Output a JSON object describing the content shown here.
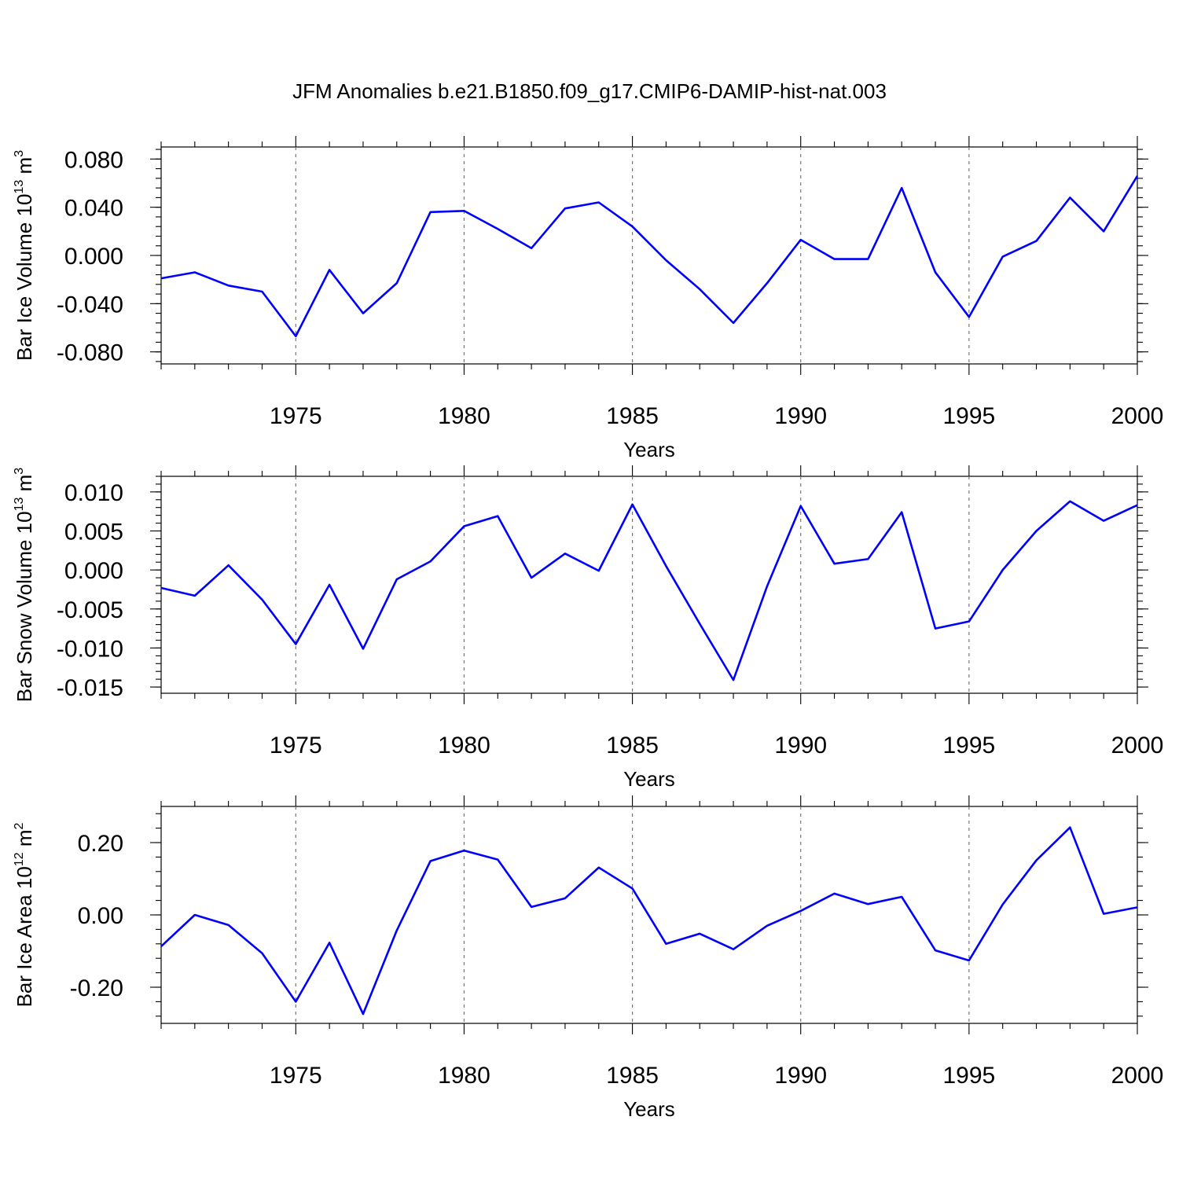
{
  "figure": {
    "title": "JFM Anomalies b.e21.B1850.f09_g17.CMIP6-DAMIP-hist-nat.003"
  },
  "style": {
    "series_color": "#0000ff",
    "grid_color": "#777777"
  },
  "chart_data": [
    {
      "type": "line",
      "ylabel": {
        "text": "Bar Ice Volume 10",
        "exponent": "13",
        "unit": "m",
        "unit_exponent": "3"
      },
      "xlabel": "Years",
      "xlim": [
        1971,
        2000
      ],
      "ylim": [
        -0.09,
        0.09
      ],
      "xticks": [
        "1975",
        "1980",
        "1985",
        "1990",
        "1995",
        "2000"
      ],
      "yticks": [
        "0.080",
        "0.040",
        "0.000",
        "-0.040",
        "-0.080"
      ],
      "ytick_values": [
        0.08,
        0.04,
        0.0,
        -0.04,
        -0.08
      ],
      "grid": "x-major dashed",
      "x": [
        1971,
        1972,
        1973,
        1974,
        1975,
        1976,
        1977,
        1978,
        1979,
        1980,
        1981,
        1982,
        1983,
        1984,
        1985,
        1986,
        1987,
        1988,
        1989,
        1990,
        1991,
        1992,
        1993,
        1994,
        1995,
        1996,
        1997,
        1998,
        1999,
        2000
      ],
      "series": [
        {
          "values": [
            -0.019,
            -0.014,
            -0.025,
            -0.03,
            -0.067,
            -0.012,
            -0.048,
            -0.023,
            0.036,
            0.037,
            0.022,
            0.006,
            0.039,
            0.044,
            0.024,
            -0.004,
            -0.028,
            -0.056,
            -0.023,
            0.013,
            -0.003,
            -0.003,
            0.056,
            -0.014,
            -0.051,
            -0.001,
            0.012,
            0.048,
            0.02,
            0.066
          ]
        }
      ]
    },
    {
      "type": "line",
      "ylabel": {
        "text": "Bar Snow Volume 10",
        "exponent": "13",
        "unit": "m",
        "unit_exponent": "3"
      },
      "xlabel": "Years",
      "xlim": [
        1971,
        2000
      ],
      "ylim": [
        -0.0158,
        0.012
      ],
      "xticks": [
        "1975",
        "1980",
        "1985",
        "1990",
        "1995",
        "2000"
      ],
      "yticks": [
        "0.010",
        "0.005",
        "0.000",
        "-0.005",
        "-0.010",
        "-0.015"
      ],
      "ytick_values": [
        0.01,
        0.005,
        0.0,
        -0.005,
        -0.01,
        -0.015
      ],
      "grid": "x-major dashed",
      "x": [
        1971,
        1972,
        1973,
        1974,
        1975,
        1976,
        1977,
        1978,
        1979,
        1980,
        1981,
        1982,
        1983,
        1984,
        1985,
        1986,
        1987,
        1988,
        1989,
        1990,
        1991,
        1992,
        1993,
        1994,
        1995,
        1996,
        1997,
        1998,
        1999,
        2000
      ],
      "series": [
        {
          "values": [
            -0.0023,
            -0.0033,
            0.0006,
            -0.0038,
            -0.0095,
            -0.0019,
            -0.0101,
            -0.0012,
            0.0011,
            0.0056,
            0.0069,
            -0.001,
            0.0021,
            -0.0001,
            0.0084,
            0.0005,
            -0.0069,
            -0.0141,
            -0.0021,
            0.0082,
            0.0008,
            0.0014,
            0.0074,
            -0.0075,
            -0.0066,
            0.0,
            0.005,
            0.0088,
            0.0063,
            0.0083
          ]
        }
      ]
    },
    {
      "type": "line",
      "ylabel": {
        "text": "Bar Ice Area 10",
        "exponent": "12",
        "unit": "m",
        "unit_exponent": "2"
      },
      "xlabel": "Years",
      "xlim": [
        1971,
        2000
      ],
      "ylim": [
        -0.3,
        0.3
      ],
      "xticks": [
        "1975",
        "1980",
        "1985",
        "1990",
        "1995",
        "2000"
      ],
      "yticks": [
        "0.20",
        "0.00",
        "-0.20"
      ],
      "ytick_values": [
        0.2,
        0.0,
        -0.2
      ],
      "grid": "x-major dashed",
      "x": [
        1971,
        1972,
        1973,
        1974,
        1975,
        1976,
        1977,
        1978,
        1979,
        1980,
        1981,
        1982,
        1983,
        1984,
        1985,
        1986,
        1987,
        1988,
        1989,
        1990,
        1991,
        1992,
        1993,
        1994,
        1995,
        1996,
        1997,
        1998,
        1999,
        2000
      ],
      "series": [
        {
          "values": [
            -0.087,
            0.0,
            -0.028,
            -0.106,
            -0.24,
            -0.077,
            -0.274,
            -0.043,
            0.149,
            0.178,
            0.153,
            0.022,
            0.046,
            0.131,
            0.073,
            -0.08,
            -0.052,
            -0.095,
            -0.03,
            0.011,
            0.059,
            0.03,
            0.05,
            -0.098,
            -0.126,
            0.029,
            0.151,
            0.242,
            0.003,
            0.021
          ]
        }
      ]
    }
  ]
}
